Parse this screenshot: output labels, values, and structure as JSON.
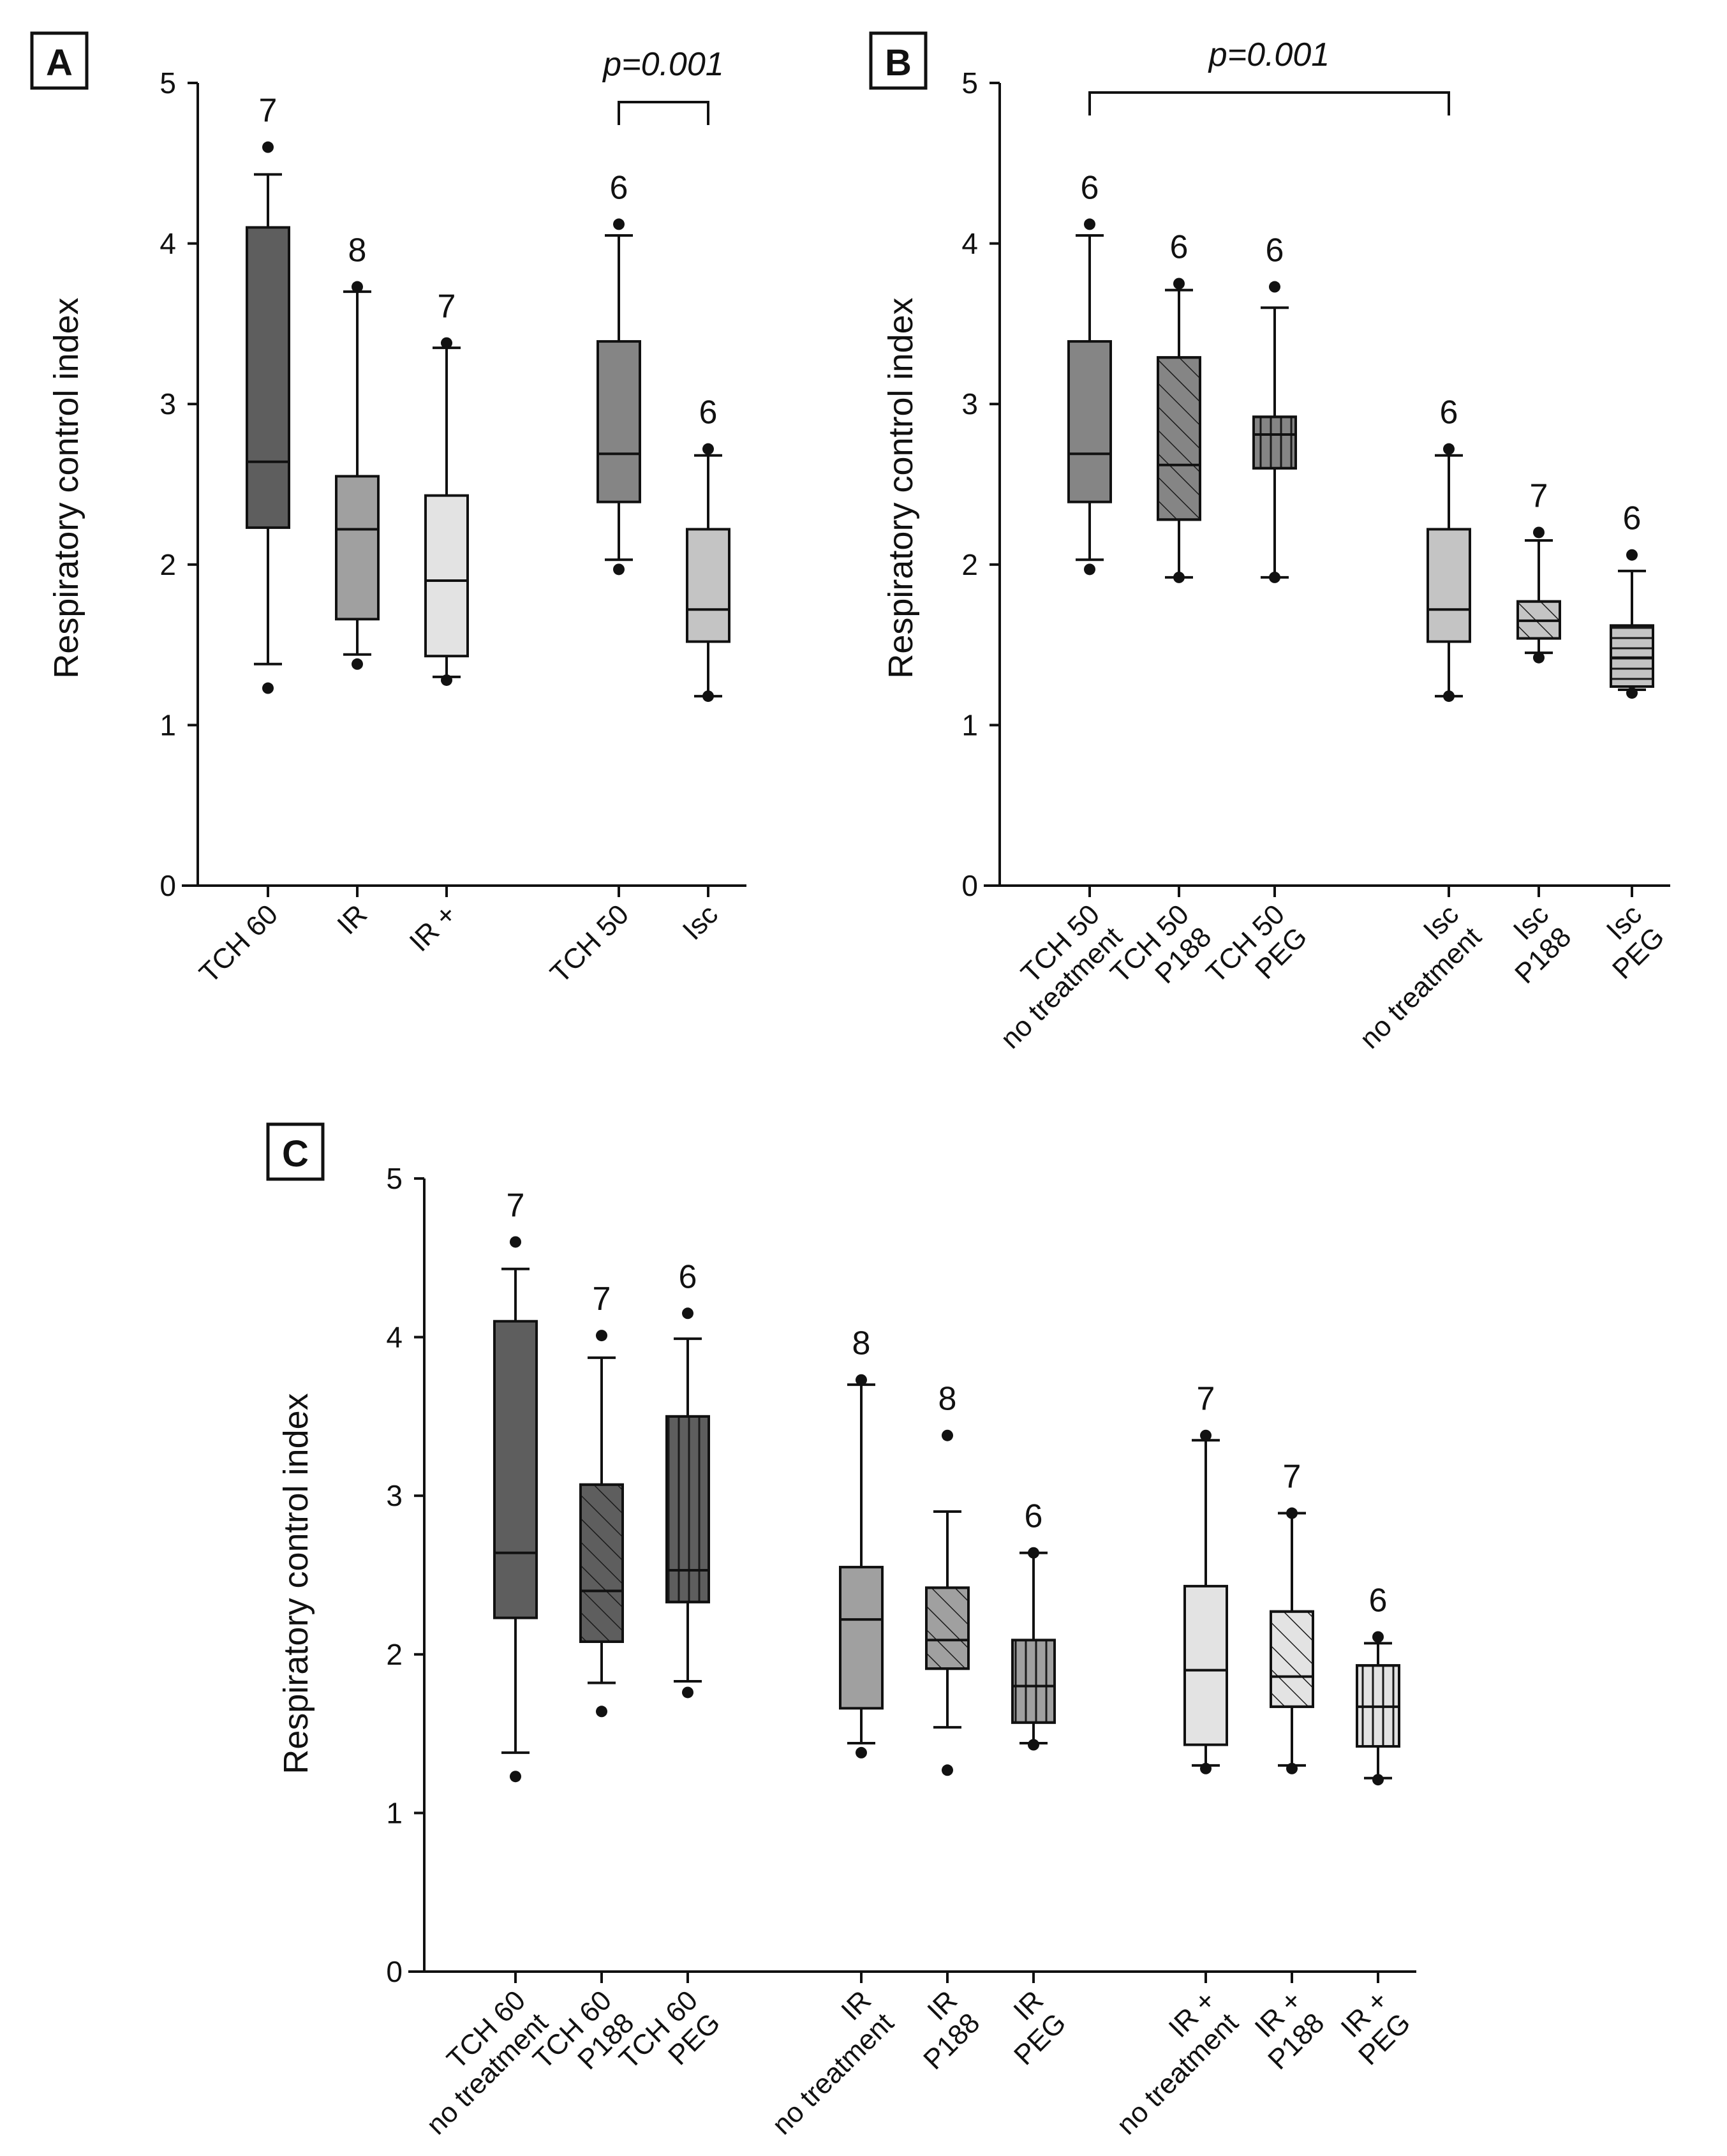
{
  "chart_data": [
    {
      "type": "box",
      "panel_label": "A",
      "ylabel": "Respiratory  control  index",
      "ylim": [
        0,
        5
      ],
      "yticks": [
        0,
        1,
        2,
        3,
        4,
        5
      ],
      "groups": [
        {
          "label": [
            "TCH 60"
          ],
          "n": "7",
          "fill": "#5e5e5e",
          "pattern": "none",
          "whisker_low": 1.38,
          "q1": 2.23,
          "median": 2.64,
          "q3": 4.1,
          "whisker_high": 4.43,
          "outliers": [
            1.23,
            4.6
          ]
        },
        {
          "label": [
            "IR"
          ],
          "n": "8",
          "fill": "#a0a0a0",
          "pattern": "none",
          "whisker_low": 1.44,
          "q1": 1.66,
          "median": 2.22,
          "q3": 2.55,
          "whisker_high": 3.7,
          "outliers": [
            1.38,
            3.73
          ]
        },
        {
          "label": [
            "IR +"
          ],
          "n": "7",
          "fill": "#e3e3e3",
          "pattern": "none",
          "whisker_low": 1.3,
          "q1": 1.43,
          "median": 1.9,
          "q3": 2.43,
          "whisker_high": 3.35,
          "outliers": [
            1.28,
            3.38
          ]
        },
        {
          "label": [
            "TCH 50"
          ],
          "n": "6",
          "fill": "#858585",
          "pattern": "none",
          "whisker_low": 2.03,
          "q1": 2.39,
          "median": 2.69,
          "q3": 3.39,
          "whisker_high": 4.05,
          "outliers": [
            1.97,
            4.12
          ]
        },
        {
          "label": [
            "Isc"
          ],
          "n": "6",
          "fill": "#c4c4c4",
          "pattern": "none",
          "whisker_low": 1.18,
          "q1": 1.52,
          "median": 1.72,
          "q3": 2.22,
          "whisker_high": 2.68,
          "outliers": [
            1.18,
            2.72
          ]
        }
      ],
      "significance": {
        "text": "p=0.001",
        "between": [
          3,
          4
        ]
      }
    },
    {
      "type": "box",
      "panel_label": "B",
      "ylabel": "Respiratory  control  index",
      "ylim": [
        0,
        5
      ],
      "yticks": [
        0,
        1,
        2,
        3,
        4,
        5
      ],
      "groups": [
        {
          "label": [
            "TCH 50",
            "no treatment"
          ],
          "n": "6",
          "fill": "#858585",
          "pattern": "none",
          "whisker_low": 2.03,
          "q1": 2.39,
          "median": 2.69,
          "q3": 3.39,
          "whisker_high": 4.05,
          "outliers": [
            1.97,
            4.12
          ]
        },
        {
          "label": [
            "TCH 50",
            "P188"
          ],
          "n": "6",
          "fill": "#858585",
          "pattern": "diag",
          "whisker_low": 1.92,
          "q1": 2.28,
          "median": 2.62,
          "q3": 3.29,
          "whisker_high": 3.71,
          "outliers": [
            1.92,
            3.75
          ]
        },
        {
          "label": [
            "TCH 50",
            "PEG"
          ],
          "n": "6",
          "fill": "#858585",
          "pattern": "vert",
          "whisker_low": 1.92,
          "q1": 2.6,
          "median": 2.81,
          "q3": 2.92,
          "whisker_high": 3.6,
          "outliers": [
            1.92,
            3.73
          ]
        },
        {
          "label": [
            "Isc",
            "no treatment"
          ],
          "n": "6",
          "fill": "#c4c4c4",
          "pattern": "none",
          "whisker_low": 1.18,
          "q1": 1.52,
          "median": 1.72,
          "q3": 2.22,
          "whisker_high": 2.68,
          "outliers": [
            1.18,
            2.72
          ]
        },
        {
          "label": [
            "Isc",
            "P188"
          ],
          "n": "7",
          "fill": "#c4c4c4",
          "pattern": "diag",
          "whisker_low": 1.45,
          "q1": 1.54,
          "median": 1.65,
          "q3": 1.77,
          "whisker_high": 2.15,
          "outliers": [
            1.42,
            2.2
          ]
        },
        {
          "label": [
            "Isc",
            "PEG"
          ],
          "n": "6",
          "fill": "#c4c4c4",
          "pattern": "horiz",
          "whisker_low": 1.22,
          "q1": 1.24,
          "median": 1.42,
          "q3": 1.62,
          "whisker_high": 1.96,
          "outliers": [
            1.2,
            2.06
          ]
        }
      ],
      "significance": {
        "text": "p=0.001",
        "between": [
          0,
          3
        ]
      }
    },
    {
      "type": "box",
      "panel_label": "C",
      "ylabel": "Respiratory  control  index",
      "ylim": [
        0,
        5
      ],
      "yticks": [
        0,
        1,
        2,
        3,
        4,
        5
      ],
      "groups": [
        {
          "label": [
            "TCH 60",
            "no treatment"
          ],
          "n": "7",
          "fill": "#5e5e5e",
          "pattern": "none",
          "whisker_low": 1.38,
          "q1": 2.23,
          "median": 2.64,
          "q3": 4.1,
          "whisker_high": 4.43,
          "outliers": [
            1.23,
            4.6
          ]
        },
        {
          "label": [
            "TCH 60",
            "P188"
          ],
          "n": "7",
          "fill": "#5e5e5e",
          "pattern": "diag",
          "whisker_low": 1.82,
          "q1": 2.08,
          "median": 2.4,
          "q3": 3.07,
          "whisker_high": 3.87,
          "outliers": [
            1.64,
            4.01
          ]
        },
        {
          "label": [
            "TCH 60",
            "PEG"
          ],
          "n": "6",
          "fill": "#5e5e5e",
          "pattern": "vert",
          "whisker_low": 1.83,
          "q1": 2.33,
          "median": 2.53,
          "q3": 3.5,
          "whisker_high": 3.99,
          "outliers": [
            1.76,
            4.15
          ]
        },
        {
          "label": [
            "IR",
            "no treatment"
          ],
          "n": "8",
          "fill": "#a0a0a0",
          "pattern": "none",
          "whisker_low": 1.44,
          "q1": 1.66,
          "median": 2.22,
          "q3": 2.55,
          "whisker_high": 3.7,
          "outliers": [
            1.38,
            3.73
          ]
        },
        {
          "label": [
            "IR",
            "P188"
          ],
          "n": "8",
          "fill": "#a0a0a0",
          "pattern": "diag",
          "whisker_low": 1.54,
          "q1": 1.91,
          "median": 2.09,
          "q3": 2.42,
          "whisker_high": 2.9,
          "outliers": [
            1.27,
            3.38
          ]
        },
        {
          "label": [
            "IR",
            "PEG"
          ],
          "n": "6",
          "fill": "#a0a0a0",
          "pattern": "vert",
          "whisker_low": 1.44,
          "q1": 1.57,
          "median": 1.8,
          "q3": 2.09,
          "whisker_high": 2.64,
          "outliers": [
            1.43,
            2.64
          ]
        },
        {
          "label": [
            "IR +",
            "no treatment"
          ],
          "n": "7",
          "fill": "#e3e3e3",
          "pattern": "none",
          "whisker_low": 1.3,
          "q1": 1.43,
          "median": 1.9,
          "q3": 2.43,
          "whisker_high": 3.35,
          "outliers": [
            1.28,
            3.38
          ]
        },
        {
          "label": [
            "IR +",
            "P188"
          ],
          "n": "7",
          "fill": "#e3e3e3",
          "pattern": "diag",
          "whisker_low": 1.3,
          "q1": 1.67,
          "median": 1.86,
          "q3": 2.27,
          "whisker_high": 2.89,
          "outliers": [
            1.28,
            2.89
          ]
        },
        {
          "label": [
            "IR +",
            "PEG"
          ],
          "n": "6",
          "fill": "#e3e3e3",
          "pattern": "vert",
          "whisker_low": 1.22,
          "q1": 1.42,
          "median": 1.67,
          "q3": 1.93,
          "whisker_high": 2.07,
          "outliers": [
            1.21,
            2.11
          ]
        }
      ],
      "significance": null
    }
  ]
}
